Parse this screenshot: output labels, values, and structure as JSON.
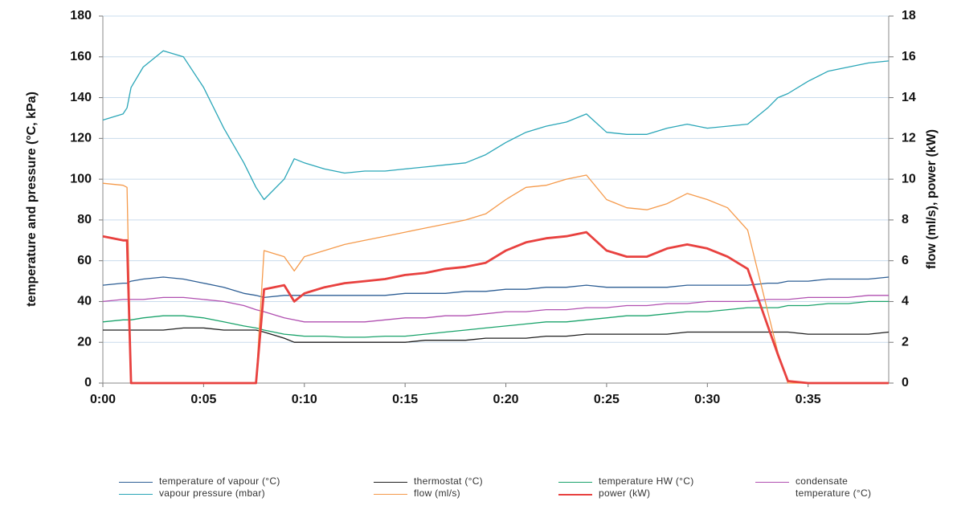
{
  "chart_data": {
    "type": "line",
    "ylabel": "temperature and pressure (°C, kPa)",
    "y2label": "flow  (ml/s), power (kW)",
    "xlim": [
      0,
      39
    ],
    "xticks": [
      {
        "value": 0,
        "label": "0:00"
      },
      {
        "value": 5,
        "label": "0:05"
      },
      {
        "value": 10,
        "label": "0:10"
      },
      {
        "value": 15,
        "label": "0:15"
      },
      {
        "value": 20,
        "label": "0:20"
      },
      {
        "value": 25,
        "label": "0:25"
      },
      {
        "value": 30,
        "label": "0:30"
      },
      {
        "value": 35,
        "label": "0:35"
      }
    ],
    "ylim": [
      0,
      180
    ],
    "yticks": [
      0,
      20,
      40,
      60,
      80,
      100,
      120,
      140,
      160,
      180
    ],
    "y2lim": [
      0,
      18
    ],
    "y2ticks": [
      0,
      2,
      4,
      6,
      8,
      10,
      12,
      14,
      16,
      18
    ],
    "grid": true,
    "x": [
      0,
      1,
      1.2,
      1.4,
      2,
      3,
      4,
      5,
      6,
      7,
      7.6,
      8,
      9,
      9.5,
      10,
      11,
      12,
      13,
      14,
      15,
      16,
      17,
      18,
      19,
      20,
      21,
      22,
      23,
      24,
      25,
      26,
      27,
      28,
      29,
      30,
      31,
      32,
      33,
      33.5,
      34,
      35,
      36,
      37,
      38,
      39
    ],
    "series": [
      {
        "name": "temperature of vapour (°C)",
        "color": "#2e5f95",
        "linewidth": 1.3,
        "values": [
          48,
          49,
          49,
          50,
          51,
          52,
          51,
          49,
          47,
          44,
          43,
          42,
          43,
          43,
          43,
          43,
          43,
          43,
          43,
          44,
          44,
          44,
          45,
          45,
          46,
          46,
          47,
          47,
          48,
          47,
          47,
          47,
          47,
          48,
          48,
          48,
          48,
          49,
          49,
          50,
          50,
          51,
          51,
          51,
          52
        ]
      },
      {
        "name": "thermostat (°C)",
        "color": "#1f1f1f",
        "linewidth": 1.3,
        "values": [
          26,
          26,
          26,
          26,
          26,
          26,
          27,
          27,
          26,
          26,
          26,
          25,
          22,
          20,
          20,
          20,
          20,
          20,
          20,
          20,
          21,
          21,
          21,
          22,
          22,
          22,
          23,
          23,
          24,
          24,
          24,
          24,
          24,
          25,
          25,
          25,
          25,
          25,
          25,
          25,
          24,
          24,
          24,
          24,
          25
        ]
      },
      {
        "name": "temperature HW (°C)",
        "color": "#1aa36b",
        "linewidth": 1.3,
        "values": [
          30,
          31,
          31,
          31,
          32,
          33,
          33,
          32,
          30,
          28,
          27,
          26,
          24,
          23.5,
          23,
          23,
          22.5,
          22.5,
          23,
          23,
          24,
          25,
          26,
          27,
          28,
          29,
          30,
          30,
          31,
          32,
          33,
          33,
          34,
          35,
          35,
          36,
          37,
          37,
          37,
          38,
          38,
          39,
          39,
          40,
          40
        ]
      },
      {
        "name": "condensate temperature (°C)",
        "color": "#b04fb0",
        "linewidth": 1.3,
        "values": [
          40,
          41,
          41,
          41,
          41,
          42,
          42,
          41,
          40,
          38,
          36,
          35,
          32,
          31,
          30,
          30,
          30,
          30,
          31,
          32,
          32,
          33,
          33,
          34,
          35,
          35,
          36,
          36,
          37,
          37,
          38,
          38,
          39,
          39,
          40,
          40,
          40,
          41,
          41,
          41,
          42,
          42,
          42,
          43,
          43
        ]
      },
      {
        "name": "vapour pressure (mbar)",
        "color": "#2aa6b8",
        "linewidth": 1.3,
        "values": [
          129,
          132,
          135,
          145,
          155,
          163,
          160,
          145,
          125,
          108,
          96,
          90,
          100,
          110,
          108,
          105,
          103,
          104,
          104,
          105,
          106,
          107,
          108,
          112,
          118,
          123,
          126,
          128,
          132,
          123,
          122,
          122,
          125,
          127,
          125,
          126,
          127,
          135,
          140,
          142,
          148,
          153,
          155,
          157,
          158
        ]
      },
      {
        "name": "flow (ml/s)",
        "color": "#f59a4b",
        "linewidth": 1.3,
        "axis": "y2",
        "values": [
          9.8,
          9.7,
          9.6,
          0,
          0,
          0,
          0,
          0,
          0,
          0,
          0,
          6.5,
          6.2,
          5.5,
          6.2,
          6.5,
          6.8,
          7.0,
          7.2,
          7.4,
          7.6,
          7.8,
          8.0,
          8.3,
          9.0,
          9.6,
          9.7,
          10.0,
          10.2,
          9.0,
          8.6,
          8.5,
          8.8,
          9.3,
          9.0,
          8.6,
          7.5,
          3.5,
          1.5,
          0,
          0,
          0,
          0,
          0,
          0
        ]
      },
      {
        "name": "power (kW)",
        "color": "#e8413f",
        "linewidth": 2.8,
        "axis": "y2",
        "values": [
          7.2,
          7.0,
          7.0,
          0,
          0,
          0,
          0,
          0,
          0,
          0,
          0,
          4.6,
          4.8,
          4.0,
          4.4,
          4.7,
          4.9,
          5.0,
          5.1,
          5.3,
          5.4,
          5.6,
          5.7,
          5.9,
          6.5,
          6.9,
          7.1,
          7.2,
          7.4,
          6.5,
          6.2,
          6.2,
          6.6,
          6.8,
          6.6,
          6.2,
          5.6,
          2.8,
          1.4,
          0.1,
          0,
          0,
          0,
          0,
          0
        ]
      }
    ]
  }
}
